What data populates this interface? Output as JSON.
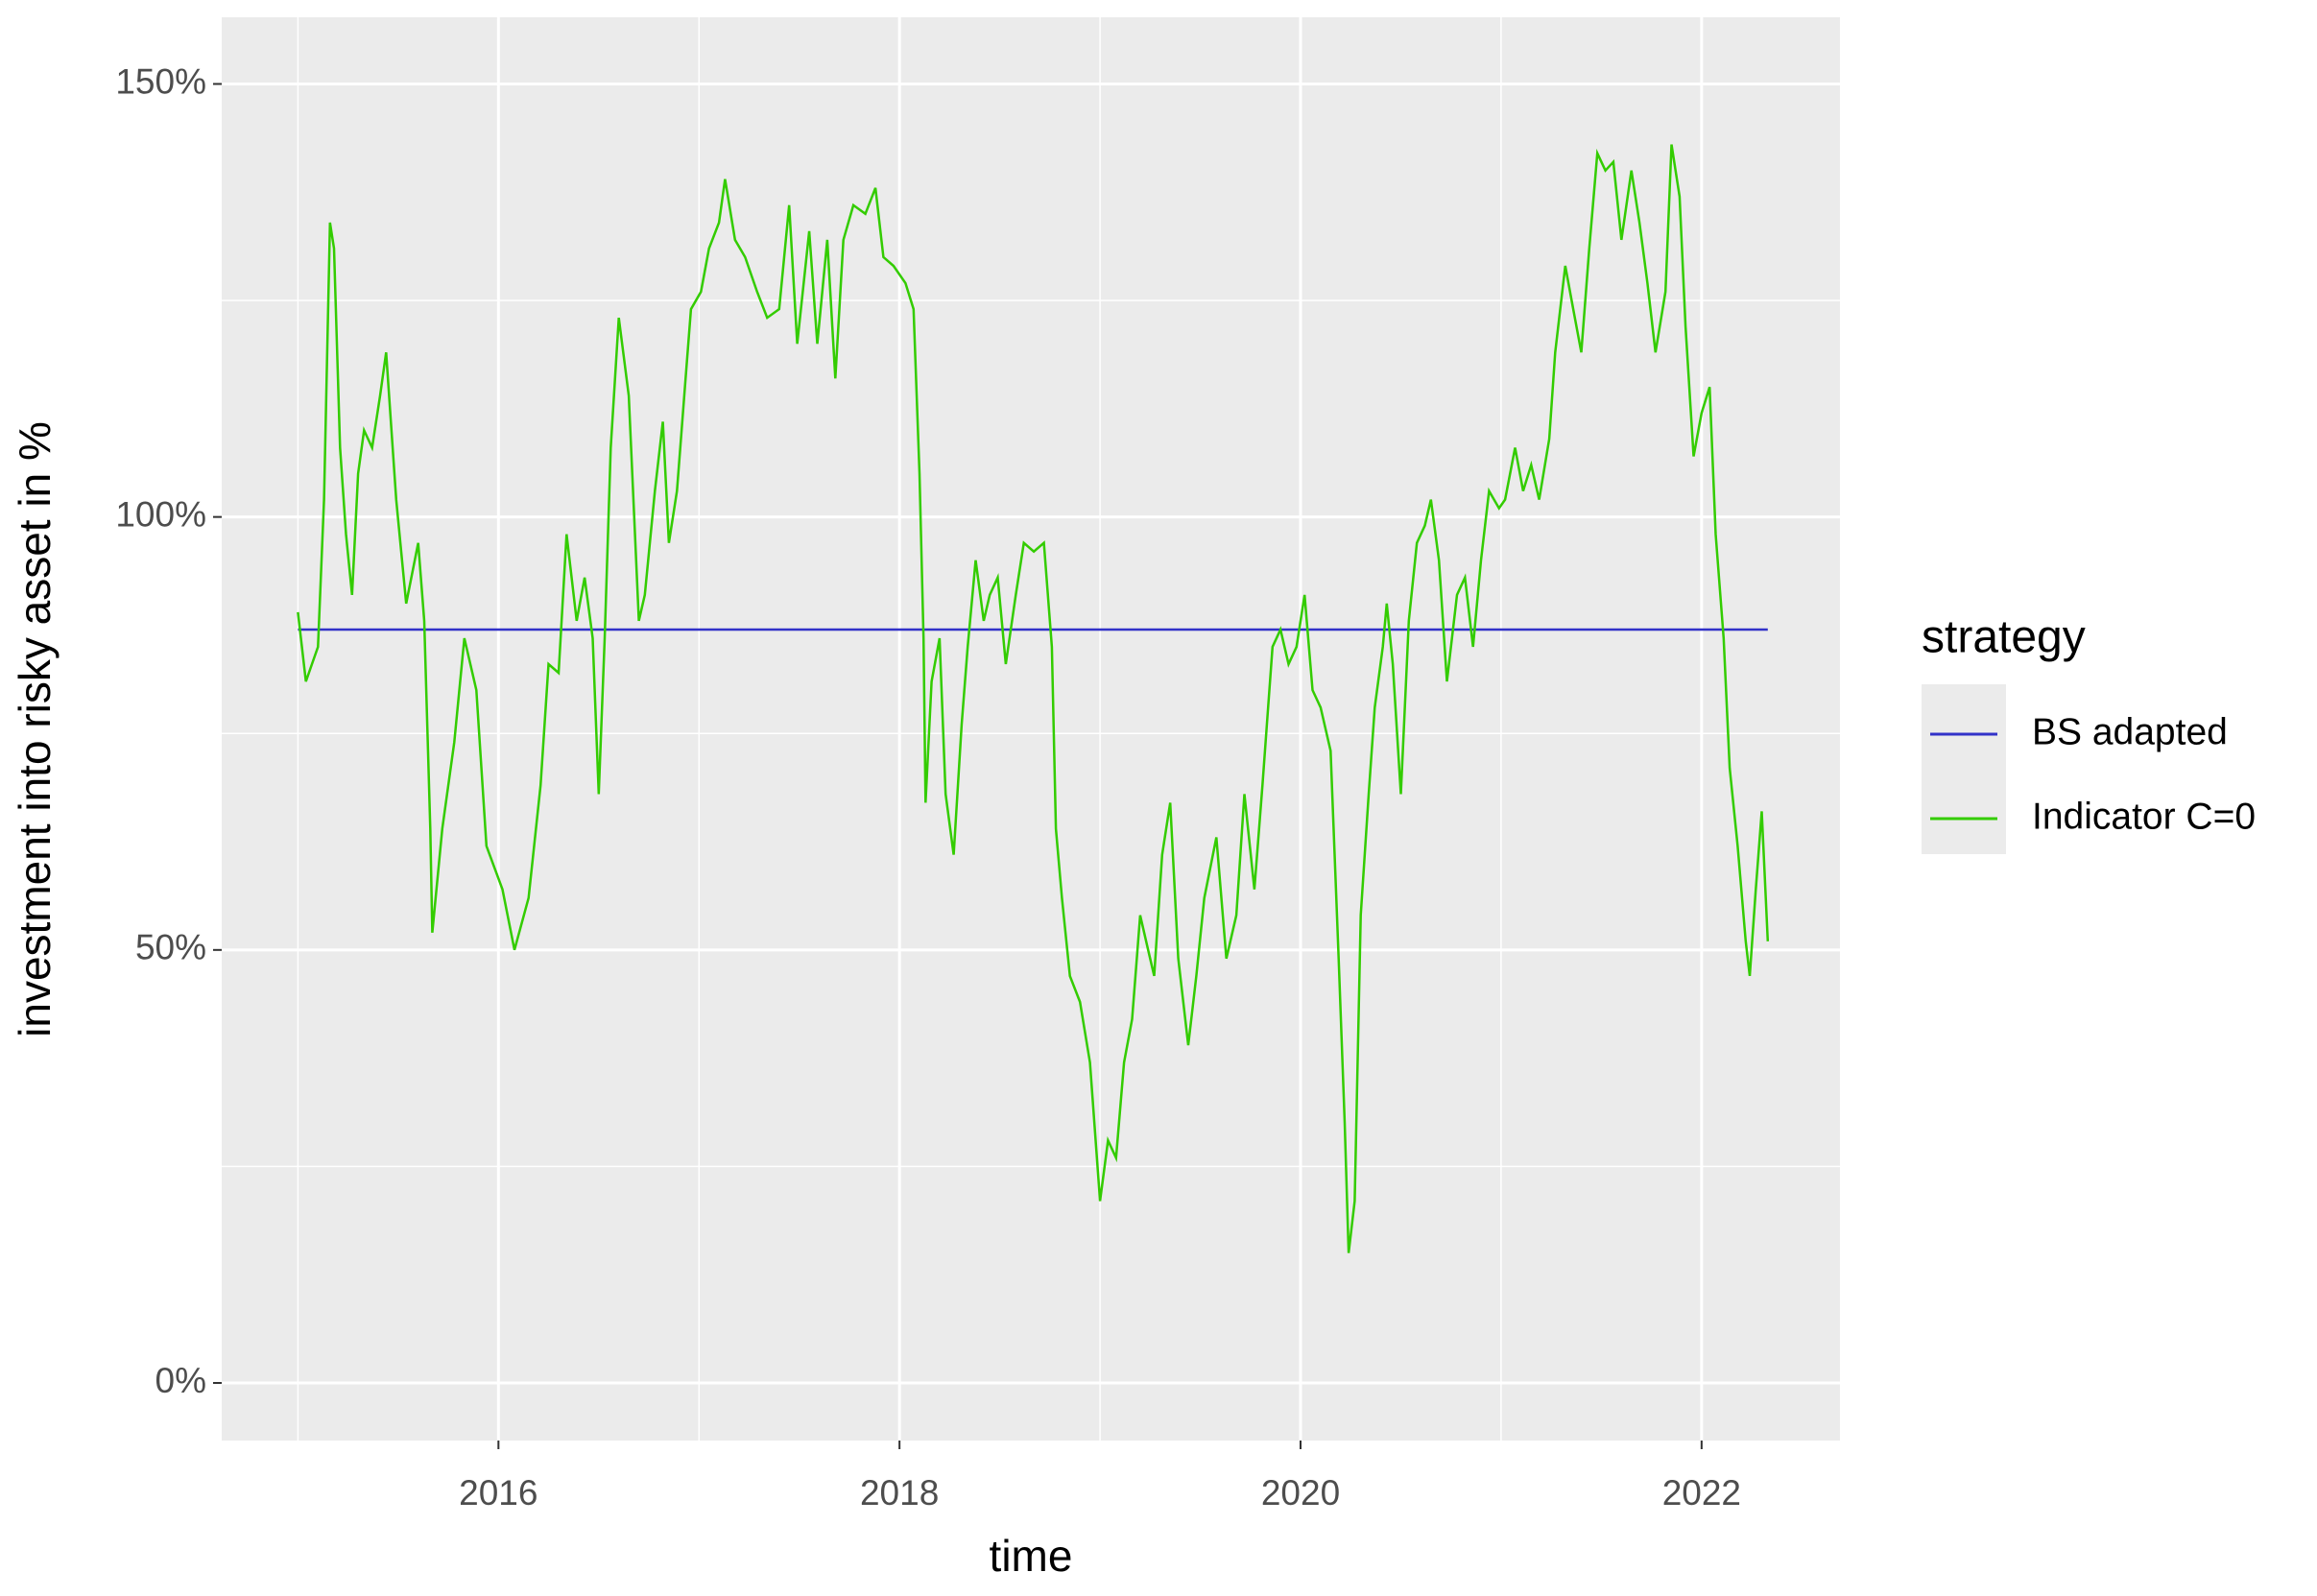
{
  "chart_data": {
    "type": "line",
    "x_label": "time",
    "y_label": "investment into risky asset in %",
    "legend_title": "strategy",
    "legend_position": "right",
    "grid": true,
    "xlim": [
      2014.62,
      2022.69
    ],
    "xticks": [
      2016,
      2018,
      2020,
      2022
    ],
    "ylim": [
      -6.65,
      157.7
    ],
    "yticks": [
      {
        "value": 0,
        "label": "0%"
      },
      {
        "value": 50,
        "label": "50%"
      },
      {
        "value": 100,
        "label": "100%"
      },
      {
        "value": 150,
        "label": "150%"
      }
    ],
    "series": [
      {
        "name": "BS adapted",
        "color": "#3232c8",
        "x": [
          2015.0,
          2022.33
        ],
        "values": [
          87,
          87
        ]
      },
      {
        "name": "Indicator C=0",
        "color": "#33cc00",
        "x": [
          2015.0,
          2015.04,
          2015.07,
          2015.1,
          2015.13,
          2015.16,
          2015.18,
          2015.21,
          2015.24,
          2015.27,
          2015.3,
          2015.33,
          2015.37,
          2015.41,
          2015.44,
          2015.49,
          2015.54,
          2015.6,
          2015.63,
          2015.66,
          2015.67,
          2015.72,
          2015.78,
          2015.83,
          2015.89,
          2015.94,
          2016.02,
          2016.08,
          2016.15,
          2016.21,
          2016.25,
          2016.3,
          2016.34,
          2016.39,
          2016.43,
          2016.47,
          2016.5,
          2016.53,
          2016.56,
          2016.6,
          2016.65,
          2016.7,
          2016.73,
          2016.78,
          2016.82,
          2016.85,
          2016.89,
          2016.93,
          2016.96,
          2017.01,
          2017.05,
          2017.1,
          2017.13,
          2017.18,
          2017.23,
          2017.29,
          2017.34,
          2017.4,
          2017.45,
          2017.49,
          2017.55,
          2017.59,
          2017.64,
          2017.68,
          2017.72,
          2017.77,
          2017.83,
          2017.88,
          2017.92,
          2017.97,
          2018.03,
          2018.07,
          2018.1,
          2018.12,
          2018.13,
          2018.16,
          2018.2,
          2018.23,
          2018.27,
          2018.31,
          2018.34,
          2018.38,
          2018.42,
          2018.45,
          2018.49,
          2018.53,
          2018.58,
          2018.62,
          2018.67,
          2018.72,
          2018.76,
          2018.78,
          2018.81,
          2018.85,
          2018.9,
          2018.95,
          2019.0,
          2019.04,
          2019.08,
          2019.12,
          2019.16,
          2019.2,
          2019.24,
          2019.27,
          2019.31,
          2019.35,
          2019.39,
          2019.44,
          2019.48,
          2019.52,
          2019.58,
          2019.63,
          2019.68,
          2019.72,
          2019.77,
          2019.81,
          2019.86,
          2019.9,
          2019.94,
          2019.98,
          2020.02,
          2020.06,
          2020.1,
          2020.15,
          2020.19,
          2020.22,
          2020.24,
          2020.27,
          2020.3,
          2020.34,
          2020.37,
          2020.41,
          2020.43,
          2020.46,
          2020.5,
          2020.54,
          2020.58,
          2020.62,
          2020.65,
          2020.69,
          2020.73,
          2020.78,
          2020.82,
          2020.86,
          2020.9,
          2020.94,
          2020.99,
          2021.02,
          2021.07,
          2021.11,
          2021.15,
          2021.19,
          2021.24,
          2021.27,
          2021.32,
          2021.36,
          2021.4,
          2021.44,
          2021.48,
          2021.52,
          2021.56,
          2021.6,
          2021.65,
          2021.69,
          2021.73,
          2021.77,
          2021.82,
          2021.85,
          2021.89,
          2021.92,
          2021.96,
          2022.0,
          2022.04,
          2022.07,
          2022.11,
          2022.14,
          2022.18,
          2022.22,
          2022.24,
          2022.27,
          2022.3,
          2022.33
        ],
        "values": [
          89,
          81,
          83,
          85,
          102,
          134,
          131,
          108,
          98,
          91,
          105,
          110,
          108,
          114,
          119,
          102,
          90,
          97,
          88,
          64,
          52,
          64,
          74,
          86,
          80,
          62,
          57,
          50,
          56,
          69,
          83,
          82,
          98,
          88,
          93,
          86,
          68,
          86,
          108,
          123,
          114,
          88,
          91,
          103,
          111,
          97,
          103,
          115,
          124,
          126,
          131,
          134,
          139,
          132,
          130,
          126,
          123,
          124,
          136,
          120,
          133,
          120,
          132,
          116,
          132,
          136,
          135,
          138,
          130,
          129,
          127,
          124,
          105,
          86,
          67,
          81,
          86,
          68,
          61,
          76,
          85,
          95,
          88,
          91,
          93,
          83,
          91,
          97,
          96,
          97,
          85,
          64,
          56,
          47,
          44,
          37,
          21,
          28,
          26,
          37,
          42,
          54,
          50,
          47,
          61,
          67,
          49,
          39,
          47,
          56,
          63,
          49,
          54,
          68,
          57,
          69,
          85,
          87,
          83,
          85,
          91,
          80,
          78,
          73,
          49,
          30,
          15,
          21,
          54,
          68,
          78,
          85,
          90,
          83,
          68,
          88,
          97,
          99,
          102,
          95,
          81,
          91,
          93,
          85,
          95,
          103,
          101,
          102,
          108,
          103,
          106,
          102,
          109,
          119,
          129,
          124,
          119,
          131,
          142,
          140,
          141,
          132,
          140,
          134,
          127,
          119,
          126,
          143,
          137,
          122,
          107,
          112,
          115,
          98,
          86,
          71,
          62,
          51,
          47,
          57,
          66,
          51
        ]
      }
    ]
  }
}
